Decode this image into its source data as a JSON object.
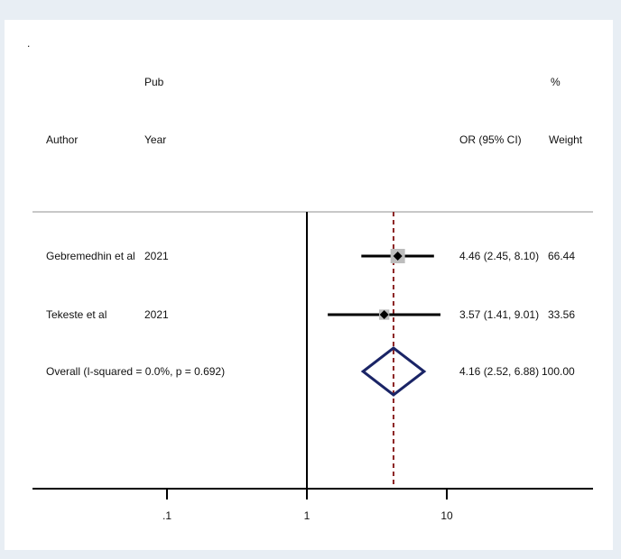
{
  "dot_marker": ".",
  "header": {
    "author": "Author",
    "pub_line1": "Pub",
    "pub_line2": "Year",
    "or_label": "OR (95% CI)",
    "weight_line1": "%",
    "weight_line2": "Weight"
  },
  "colors": {
    "outer_bg": "#e8eef4",
    "panel_bg": "#ffffff",
    "separator": "#c8c8c8",
    "ci_line": "#000000",
    "weight_box": "#bdbdbd",
    "point": "#000000",
    "diamond": "#1a2466",
    "overall_line": "#8b2323",
    "axis": "#000000"
  },
  "chart_data": {
    "type": "forest",
    "scale": "log",
    "xlim": [
      0.05,
      35
    ],
    "ticks": [
      {
        "value": 0.1,
        "label": ".1"
      },
      {
        "value": 1,
        "label": "1"
      },
      {
        "value": 10,
        "label": "10"
      }
    ],
    "null_line": 1,
    "studies": [
      {
        "author": "Gebremedhin et al",
        "year": "2021",
        "or": 4.46,
        "lo": 2.45,
        "hi": 8.1,
        "ci_text": "4.46 (2.45, 8.10)",
        "weight": 66.44,
        "weight_text": "66.44"
      },
      {
        "author": "Tekeste et al",
        "year": "2021",
        "or": 3.57,
        "lo": 1.41,
        "hi": 9.01,
        "ci_text": "3.57 (1.41, 9.01)",
        "weight": 33.56,
        "weight_text": "33.56"
      }
    ],
    "overall": {
      "label": "Overall  (I-squared = 0.0%, p = 0.692)",
      "or": 4.16,
      "lo": 2.52,
      "hi": 6.88,
      "ci_text": "4.16 (2.52, 6.88)",
      "weight_text": "100.00"
    }
  }
}
